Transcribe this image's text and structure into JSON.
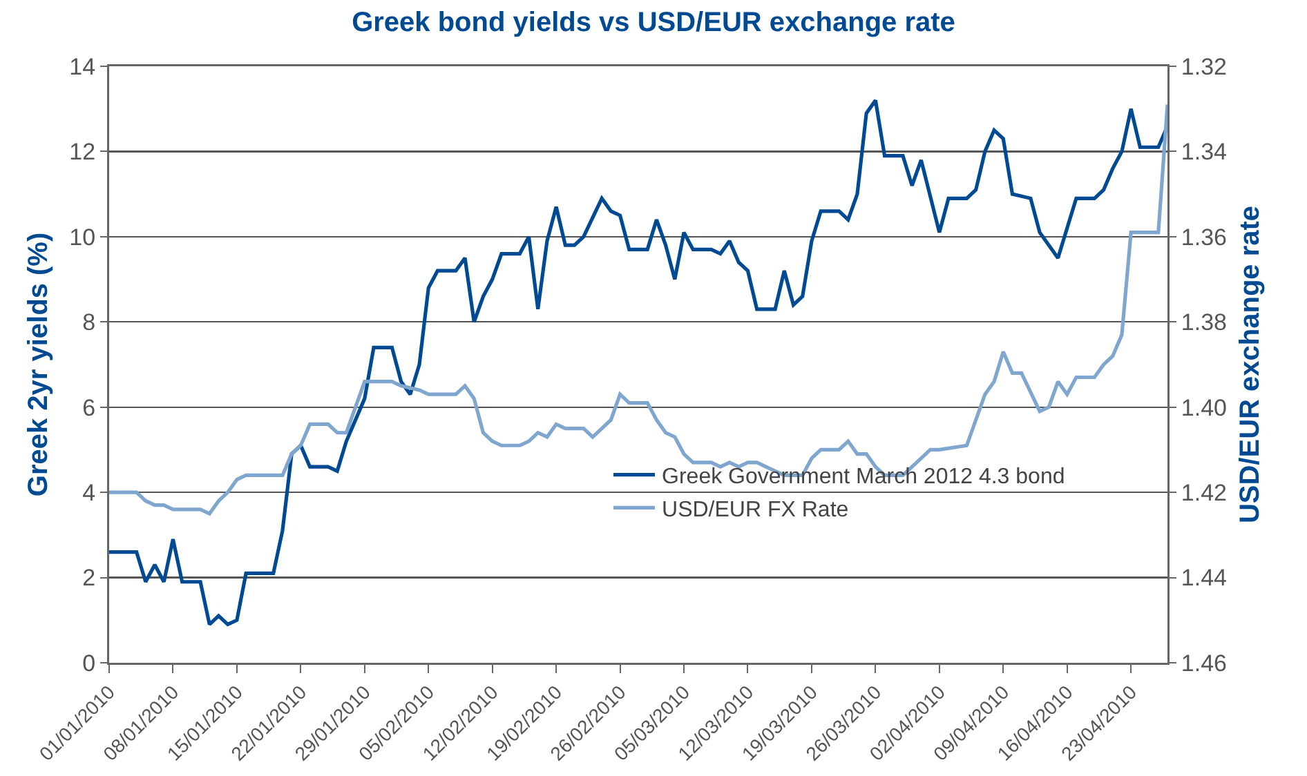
{
  "chart_data": {
    "type": "line",
    "title": "Greek bond yields vs USD/EUR exchange rate",
    "ylabel": "Greek 2yr yields (%)",
    "y2label": "USD/EUR exchange rate",
    "xlim": [
      "2010-01-01",
      "2010-04-27"
    ],
    "xticks": [
      {
        "value": "2010-01-01",
        "label": "01/01/2010"
      },
      {
        "value": "2010-01-08",
        "label": "08/01/2010"
      },
      {
        "value": "2010-01-15",
        "label": "15/01/2010"
      },
      {
        "value": "2010-01-22",
        "label": "22/01/2010"
      },
      {
        "value": "2010-01-29",
        "label": "29/01/2010"
      },
      {
        "value": "2010-02-05",
        "label": "05/02/2010"
      },
      {
        "value": "2010-02-12",
        "label": "12/02/2010"
      },
      {
        "value": "2010-02-19",
        "label": "19/02/2010"
      },
      {
        "value": "2010-02-26",
        "label": "26/02/2010"
      },
      {
        "value": "2010-03-05",
        "label": "05/03/2010"
      },
      {
        "value": "2010-03-12",
        "label": "12/03/2010"
      },
      {
        "value": "2010-03-19",
        "label": "19/03/2010"
      },
      {
        "value": "2010-03-26",
        "label": "26/03/2010"
      },
      {
        "value": "2010-04-02",
        "label": "02/04/2010"
      },
      {
        "value": "2010-04-09",
        "label": "09/04/2010"
      },
      {
        "value": "2010-04-16",
        "label": "16/04/2010"
      },
      {
        "value": "2010-04-23",
        "label": "23/04/2010"
      }
    ],
    "ylim": [
      0,
      14
    ],
    "yticks": [
      0,
      2,
      4,
      6,
      8,
      10,
      12,
      14
    ],
    "y2lim": [
      1.46,
      1.32
    ],
    "y2ticks": [
      1.32,
      1.34,
      1.36,
      1.38,
      {
        "value": 1.4,
        "label": "1.40"
      },
      1.42,
      1.44,
      1.46
    ],
    "grid": "y",
    "legend": "bottom right",
    "series": [
      {
        "name": "Greek Government March 2012 4.3 bond",
        "color": "#004a93",
        "x": [
          "2010-01-01",
          "2010-01-04",
          "2010-01-05",
          "2010-01-06",
          "2010-01-07",
          "2010-01-08",
          "2010-01-09",
          "2010-01-11",
          "2010-01-12",
          "2010-01-13",
          "2010-01-14",
          "2010-01-15",
          "2010-01-16",
          "2010-01-19",
          "2010-01-20",
          "2010-01-21",
          "2010-01-22",
          "2010-01-23",
          "2010-01-25",
          "2010-01-26",
          "2010-01-27",
          "2010-01-29",
          "2010-01-30",
          "2010-02-01",
          "2010-02-02",
          "2010-02-03",
          "2010-02-04",
          "2010-02-05",
          "2010-02-06",
          "2010-02-08",
          "2010-02-09",
          "2010-02-10",
          "2010-02-11",
          "2010-02-12",
          "2010-02-13",
          "2010-02-15",
          "2010-02-16",
          "2010-02-17",
          "2010-02-18",
          "2010-02-19",
          "2010-02-20",
          "2010-02-21",
          "2010-02-22",
          "2010-02-24",
          "2010-02-25",
          "2010-02-26",
          "2010-02-27",
          "2010-03-01",
          "2010-03-02",
          "2010-03-03",
          "2010-03-04",
          "2010-03-05",
          "2010-03-06",
          "2010-03-08",
          "2010-03-09",
          "2010-03-10",
          "2010-03-11",
          "2010-03-12",
          "2010-03-13",
          "2010-03-15",
          "2010-03-16",
          "2010-03-17",
          "2010-03-18",
          "2010-03-19",
          "2010-03-20",
          "2010-03-22",
          "2010-03-23",
          "2010-03-24",
          "2010-03-25",
          "2010-03-26",
          "2010-03-27",
          "2010-03-29",
          "2010-03-30",
          "2010-03-31",
          "2010-04-02",
          "2010-04-03",
          "2010-04-05",
          "2010-04-06",
          "2010-04-07",
          "2010-04-08",
          "2010-04-09",
          "2010-04-10",
          "2010-04-12",
          "2010-04-13",
          "2010-04-14",
          "2010-04-15",
          "2010-04-16",
          "2010-04-17",
          "2010-04-19",
          "2010-04-20",
          "2010-04-21",
          "2010-04-22",
          "2010-04-23",
          "2010-04-24",
          "2010-04-26",
          "2010-04-27"
        ],
        "values": [
          2.6,
          2.6,
          1.9,
          2.3,
          1.9,
          2.9,
          1.9,
          1.9,
          0.9,
          1.1,
          0.9,
          1.0,
          2.1,
          2.1,
          3.1,
          4.9,
          5.1,
          4.6,
          4.6,
          4.5,
          5.2,
          6.2,
          7.4,
          7.4,
          6.6,
          6.3,
          7.0,
          8.8,
          9.2,
          9.2,
          9.5,
          8.0,
          8.6,
          9.0,
          9.6,
          9.6,
          10.0,
          8.3,
          9.9,
          10.7,
          9.8,
          9.8,
          10.0,
          10.9,
          10.6,
          10.5,
          9.7,
          9.7,
          10.4,
          9.8,
          9.0,
          10.1,
          9.7,
          9.7,
          9.6,
          9.9,
          9.4,
          9.2,
          8.3,
          8.3,
          9.2,
          8.4,
          8.6,
          9.9,
          10.6,
          10.6,
          10.4,
          11.0,
          12.9,
          13.2,
          11.9,
          11.9,
          11.2,
          11.8,
          10.1,
          10.9,
          10.9,
          11.1,
          12.0,
          12.5,
          12.3,
          11.0,
          10.9,
          10.1,
          9.8,
          9.5,
          10.2,
          10.9,
          10.9,
          11.1,
          11.6,
          12.0,
          13.0,
          12.1,
          12.1,
          12.6
        ]
      },
      {
        "name": "USD/EUR FX Rate",
        "color": "#7fa6cf",
        "axis": "y2",
        "x": [
          "2010-01-01",
          "2010-01-04",
          "2010-01-05",
          "2010-01-06",
          "2010-01-07",
          "2010-01-08",
          "2010-01-09",
          "2010-01-11",
          "2010-01-12",
          "2010-01-13",
          "2010-01-14",
          "2010-01-15",
          "2010-01-16",
          "2010-01-18",
          "2010-01-20",
          "2010-01-21",
          "2010-01-22",
          "2010-01-23",
          "2010-01-25",
          "2010-01-26",
          "2010-01-27",
          "2010-01-29",
          "2010-01-30",
          "2010-02-01",
          "2010-02-02",
          "2010-02-04",
          "2010-02-05",
          "2010-02-08",
          "2010-02-09",
          "2010-02-10",
          "2010-02-11",
          "2010-02-12",
          "2010-02-13",
          "2010-02-15",
          "2010-02-16",
          "2010-02-17",
          "2010-02-18",
          "2010-02-19",
          "2010-02-20",
          "2010-02-22",
          "2010-02-23",
          "2010-02-24",
          "2010-02-25",
          "2010-02-26",
          "2010-02-27",
          "2010-03-01",
          "2010-03-02",
          "2010-03-03",
          "2010-03-04",
          "2010-03-05",
          "2010-03-06",
          "2010-03-08",
          "2010-03-09",
          "2010-03-10",
          "2010-03-11",
          "2010-03-12",
          "2010-03-13",
          "2010-03-14",
          "2010-03-15",
          "2010-03-16",
          "2010-03-17",
          "2010-03-18",
          "2010-03-19",
          "2010-03-20",
          "2010-03-22",
          "2010-03-23",
          "2010-03-24",
          "2010-03-25",
          "2010-03-26",
          "2010-03-27",
          "2010-03-29",
          "2010-03-30",
          "2010-03-31",
          "2010-04-01",
          "2010-04-02",
          "2010-04-05",
          "2010-04-07",
          "2010-04-08",
          "2010-04-09",
          "2010-04-10",
          "2010-04-11",
          "2010-04-13",
          "2010-04-14",
          "2010-04-15",
          "2010-04-16",
          "2010-04-17",
          "2010-04-19",
          "2010-04-20",
          "2010-04-21",
          "2010-04-22",
          "2010-04-23",
          "2010-04-26",
          "2010-04-27"
        ],
        "values": [
          1.42,
          1.42,
          1.422,
          1.423,
          1.423,
          1.424,
          1.424,
          1.424,
          1.425,
          1.422,
          1.42,
          1.417,
          1.416,
          1.416,
          1.416,
          1.411,
          1.409,
          1.404,
          1.404,
          1.406,
          1.406,
          1.394,
          1.394,
          1.394,
          1.395,
          1.396,
          1.397,
          1.397,
          1.395,
          1.398,
          1.406,
          1.408,
          1.409,
          1.409,
          1.408,
          1.406,
          1.407,
          1.404,
          1.405,
          1.405,
          1.407,
          1.405,
          1.403,
          1.397,
          1.399,
          1.399,
          1.403,
          1.406,
          1.407,
          1.411,
          1.413,
          1.413,
          1.414,
          1.413,
          1.414,
          1.413,
          1.413,
          1.414,
          1.415,
          1.416,
          1.416,
          1.416,
          1.412,
          1.41,
          1.41,
          1.408,
          1.411,
          1.411,
          1.414,
          1.416,
          1.416,
          1.414,
          1.412,
          1.41,
          1.41,
          1.409,
          1.397,
          1.394,
          1.387,
          1.392,
          1.392,
          1.401,
          1.4,
          1.394,
          1.397,
          1.393,
          1.393,
          1.39,
          1.388,
          1.383,
          1.359,
          1.359,
          1.329
        ]
      }
    ]
  }
}
